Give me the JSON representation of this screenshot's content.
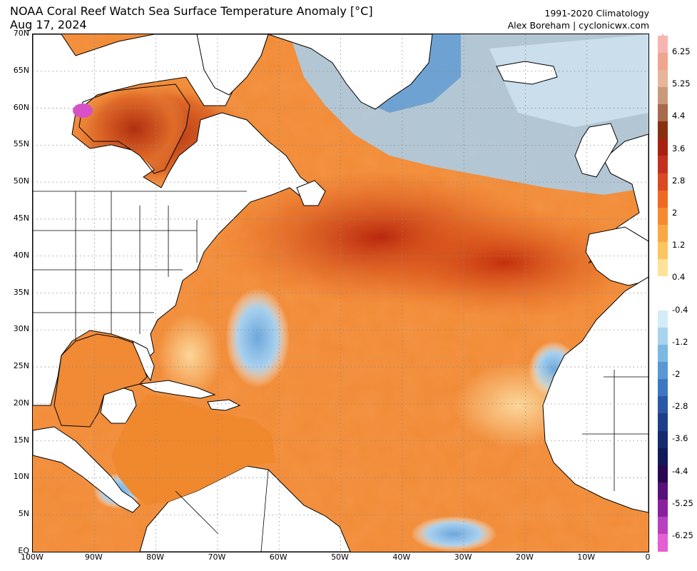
{
  "header": {
    "title_line1": "NOAA Coral Reef Watch Sea Surface Temperature Anomaly [°C]",
    "title_line2": "Aug 17, 2024",
    "climatology": "1991-2020 Climatology",
    "credit": "Alex Boreham | cyclonicwx.com"
  },
  "axes": {
    "lat_labels": [
      "70N",
      "65N",
      "60N",
      "55N",
      "50N",
      "45N",
      "40N",
      "35N",
      "30N",
      "25N",
      "20N",
      "15N",
      "10N",
      "5N",
      "EQ"
    ],
    "lon_labels": [
      "100W",
      "90W",
      "80W",
      "70W",
      "60W",
      "50W",
      "40W",
      "30W",
      "20W",
      "10W",
      "0"
    ]
  },
  "colorbar": {
    "labels": [
      "6.25",
      "5.25",
      "4.4",
      "3.6",
      "2.8",
      "2",
      "1.2",
      "0.4",
      "-0.4",
      "-1.2",
      "-2",
      "-2.8",
      "-3.6",
      "-4.4",
      "-5.25",
      "-6.25"
    ],
    "colors": [
      "#f7b5b0",
      "#f0a58f",
      "#e8b59a",
      "#c99a7a",
      "#a86a4a",
      "#8a3010",
      "#a82010",
      "#c43020",
      "#d84a20",
      "#ee6a20",
      "#f58a30",
      "#f9a845",
      "#fcc560",
      "#fde29a",
      "#ffffff",
      "#ffffff",
      "#d4ecf6",
      "#a8d4ee",
      "#7cb8e4",
      "#5898d4",
      "#3a78c4",
      "#2a58a8",
      "#1e3e8c",
      "#162a70",
      "#101a58",
      "#2a0850",
      "#58107a",
      "#8a20a0",
      "#b840c0",
      "#e45fd1"
    ]
  },
  "region": {
    "lat_range": [
      0,
      70
    ],
    "lon_range": [
      -100,
      0
    ],
    "variable": "Sea Surface Temperature Anomaly",
    "units": "°C",
    "date": "Aug 17, 2024"
  }
}
